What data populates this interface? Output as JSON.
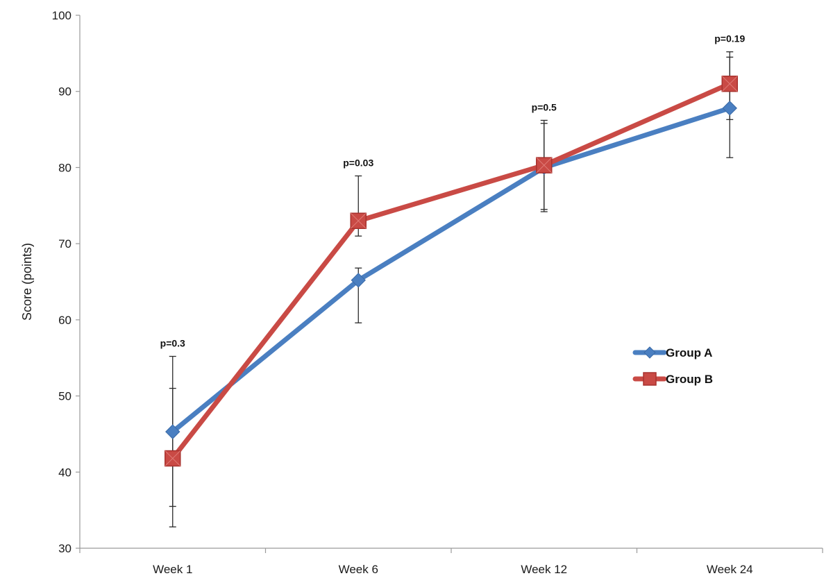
{
  "chart_data": {
    "type": "line",
    "ylabel": "Score (points)",
    "xlabel": "",
    "ylim": [
      30,
      100
    ],
    "yticks": [
      30,
      40,
      50,
      60,
      70,
      80,
      90,
      100
    ],
    "categories": [
      "Week 1",
      "Week 6",
      "Week 12",
      "Week 24"
    ],
    "grid": false,
    "legend_position": "right",
    "series": [
      {
        "name": "Group A",
        "color": "#4a7fc1",
        "marker": "diamond",
        "values": [
          45.3,
          65.2,
          80.0,
          87.8
        ],
        "error_low": [
          35.5,
          59.6,
          74.2,
          81.3
        ],
        "error_high": [
          55.2,
          66.8,
          86.2,
          94.5
        ]
      },
      {
        "name": "Group B",
        "color": "#c94a45",
        "marker": "square",
        "values": [
          41.8,
          73.0,
          80.3,
          91.0
        ],
        "error_low": [
          32.8,
          71.0,
          74.5,
          86.3
        ],
        "error_high": [
          51.0,
          78.9,
          85.8,
          95.2
        ]
      }
    ],
    "annotations": [
      "p=0.3",
      "p=0.03",
      "p=0.5",
      "p=0.19"
    ]
  }
}
